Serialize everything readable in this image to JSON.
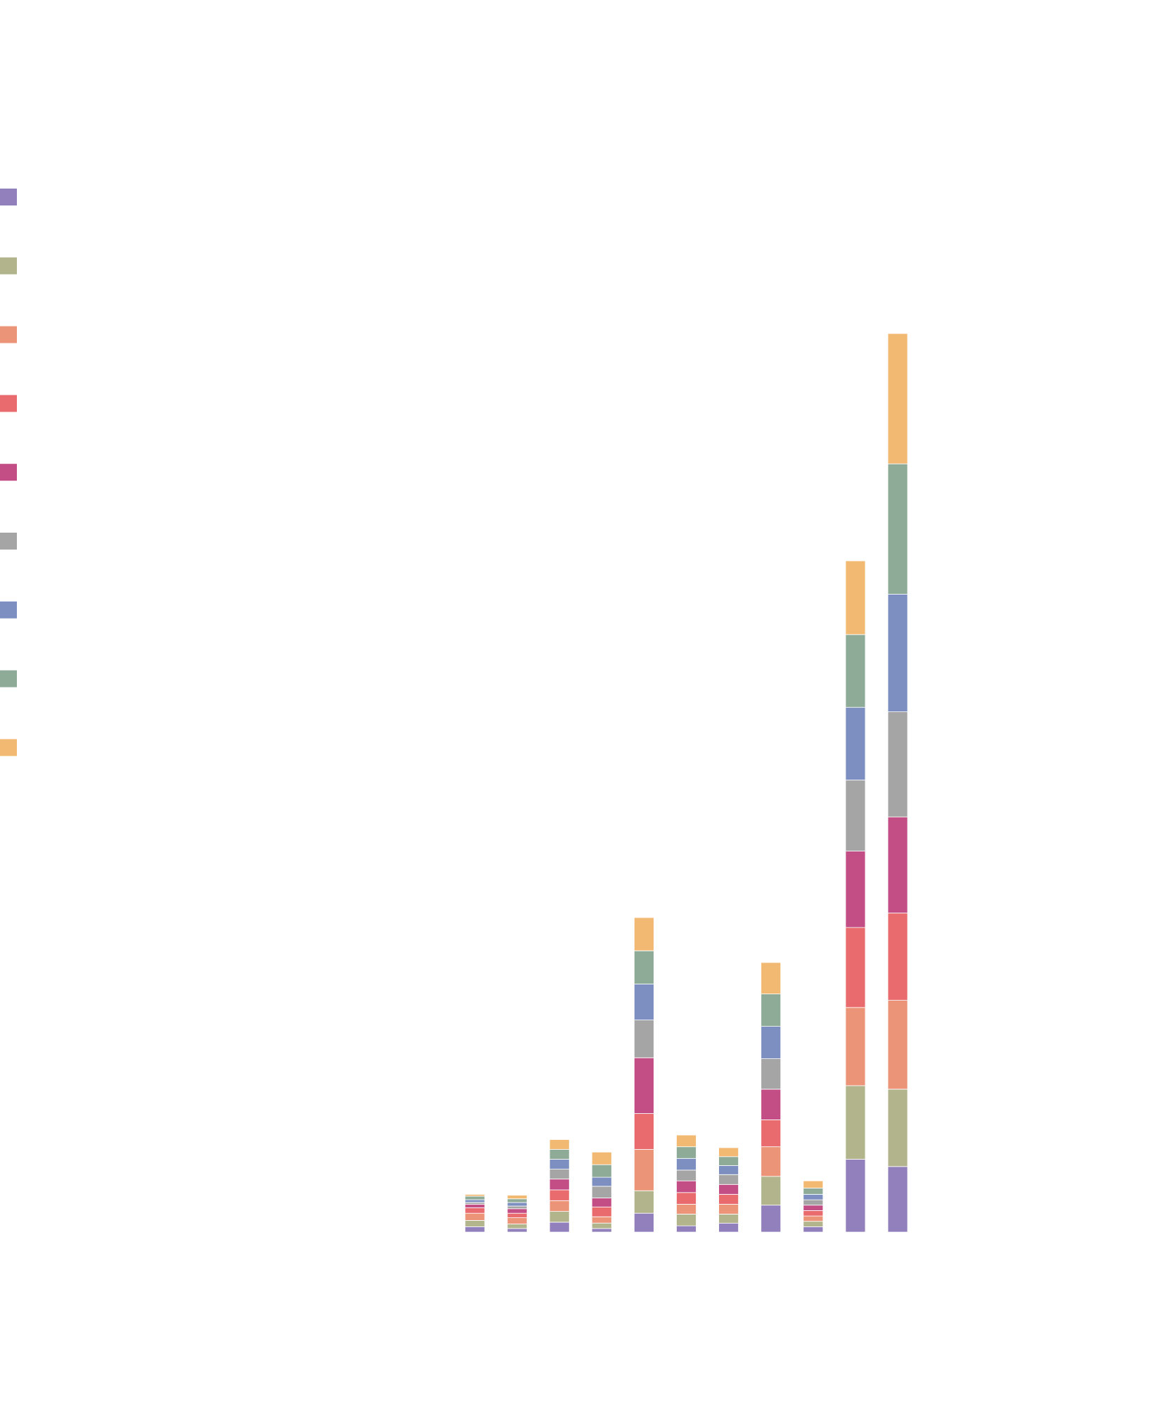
{
  "chart_data": {
    "type": "bar",
    "stacked": true,
    "title": "",
    "xlabel": "",
    "ylabel": "",
    "categories": [
      "",
      "",
      "",
      "",
      "",
      "",
      "",
      "",
      "",
      "",
      ""
    ],
    "ylim": [
      0,
      1000
    ],
    "grid": false,
    "legend_placement": "left",
    "series": [
      {
        "color": "#9180bb",
        "values": [
          6,
          4,
          11,
          4,
          21,
          7,
          10,
          30,
          6,
          81,
          73
        ]
      },
      {
        "color": "#b2b58c",
        "values": [
          7,
          5,
          12,
          6,
          25,
          13,
          10,
          32,
          6,
          82,
          86
        ]
      },
      {
        "color": "#eb9478",
        "values": [
          8,
          7,
          12,
          7,
          46,
          11,
          11,
          33,
          6,
          87,
          99
        ]
      },
      {
        "color": "#ea6b6d",
        "values": [
          6,
          5,
          12,
          11,
          40,
          13,
          11,
          30,
          6,
          89,
          97
        ]
      },
      {
        "color": "#c24e85",
        "values": [
          4,
          5,
          12,
          10,
          62,
          13,
          11,
          34,
          6,
          85,
          107
        ]
      },
      {
        "color": "#a6a5a5",
        "values": [
          2,
          3,
          11,
          13,
          42,
          12,
          11,
          34,
          6,
          79,
          117
        ]
      },
      {
        "color": "#7c8fc0",
        "values": [
          3,
          4,
          11,
          10,
          40,
          13,
          10,
          36,
          6,
          81,
          131
        ]
      },
      {
        "color": "#8eab98",
        "values": [
          4,
          4,
          11,
          14,
          37,
          13,
          10,
          36,
          7,
          81,
          145
        ]
      },
      {
        "color": "#f2b972",
        "values": [
          2,
          4,
          11,
          14,
          37,
          13,
          10,
          35,
          8,
          82,
          145
        ]
      }
    ]
  }
}
